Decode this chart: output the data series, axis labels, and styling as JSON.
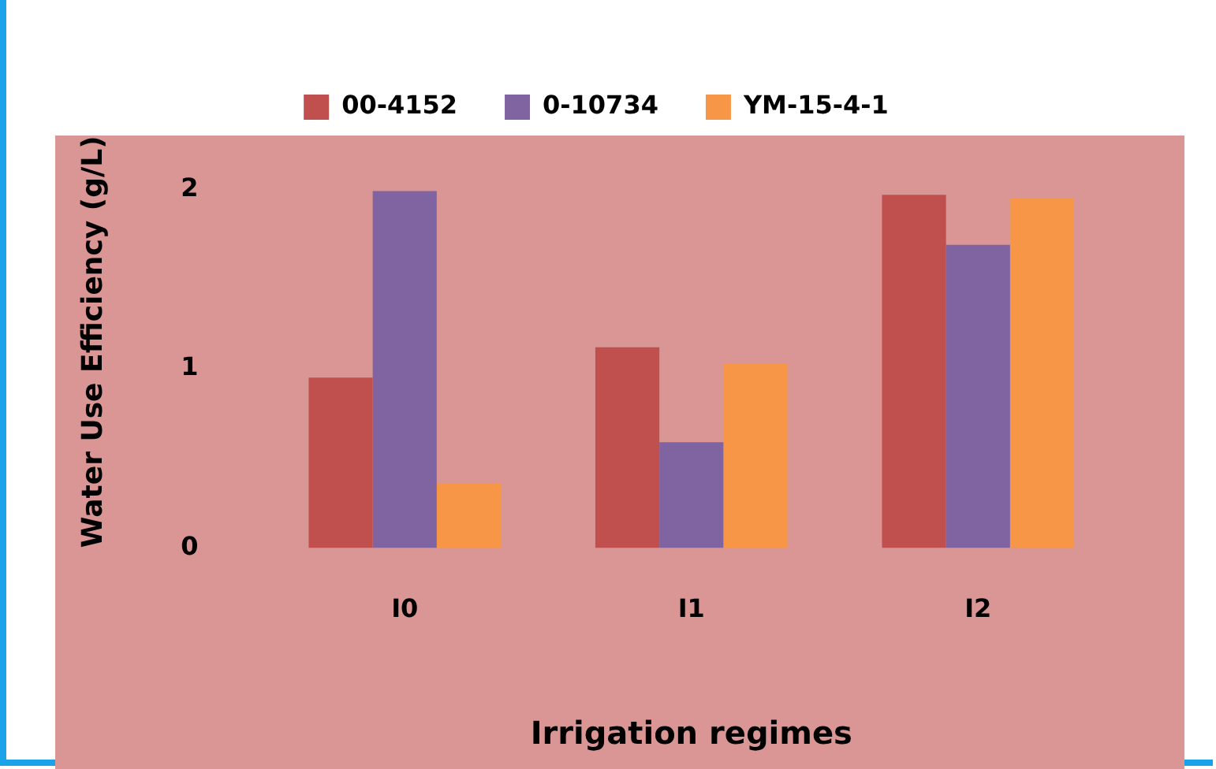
{
  "chart_data": {
    "type": "bar",
    "xlabel": "Irrigation regimes",
    "ylabel": "Water Use Efficiency (g/L)",
    "categories": [
      "I0",
      "I1",
      "I2"
    ],
    "series": [
      {
        "name": "00-4152",
        "color": "#c0504d",
        "values": [
          0.95,
          1.12,
          1.97
        ]
      },
      {
        "name": "0-10734",
        "color": "#8064a2",
        "values": [
          1.99,
          0.59,
          1.69
        ]
      },
      {
        "name": "YM-15-4-1",
        "color": "#f79646",
        "values": [
          0.36,
          1.03,
          1.95
        ]
      }
    ],
    "ylim": [
      0,
      2.3
    ],
    "yticks": [
      0,
      1,
      2
    ],
    "grid": false,
    "legend": "top"
  }
}
